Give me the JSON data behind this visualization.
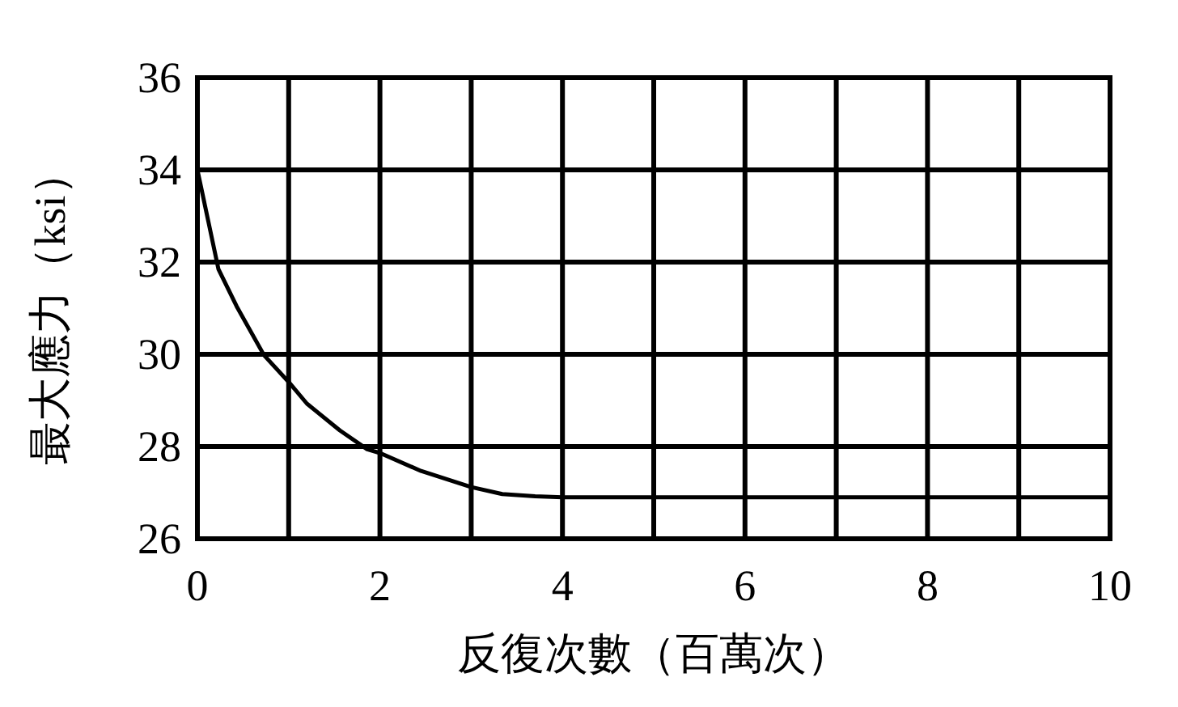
{
  "chart_data": {
    "type": "line",
    "xlabel": "反復次數（百萬次）",
    "ylabel": "最大應力（ksi）",
    "x": [
      0,
      0.23,
      0.43,
      0.73,
      1,
      1.2,
      1.56,
      1.86,
      2,
      2.45,
      3,
      3.34,
      3.7,
      4,
      5,
      6,
      7,
      8,
      9,
      10
    ],
    "series": [
      {
        "color": "#000000",
        "values": [
          34,
          31.85,
          31.04,
          29.98,
          29.4,
          28.93,
          28.35,
          27.94,
          27.86,
          27.47,
          27.12,
          26.97,
          26.92,
          26.9,
          26.9,
          26.9,
          26.9,
          26.9,
          26.9,
          26.9
        ]
      }
    ],
    "xlim": [
      0,
      10
    ],
    "ylim": [
      26,
      36
    ],
    "xticks": [
      0,
      {
        "value": 1,
        "label": null
      },
      2,
      {
        "value": 3,
        "label": null
      },
      4,
      {
        "value": 5,
        "label": null
      },
      6,
      {
        "value": 7,
        "label": null
      },
      8,
      {
        "value": 9,
        "label": null
      },
      10
    ],
    "yticks": [
      26,
      28,
      30,
      32,
      34,
      36
    ],
    "grid": true,
    "marker": "none",
    "line_style": "solid"
  }
}
